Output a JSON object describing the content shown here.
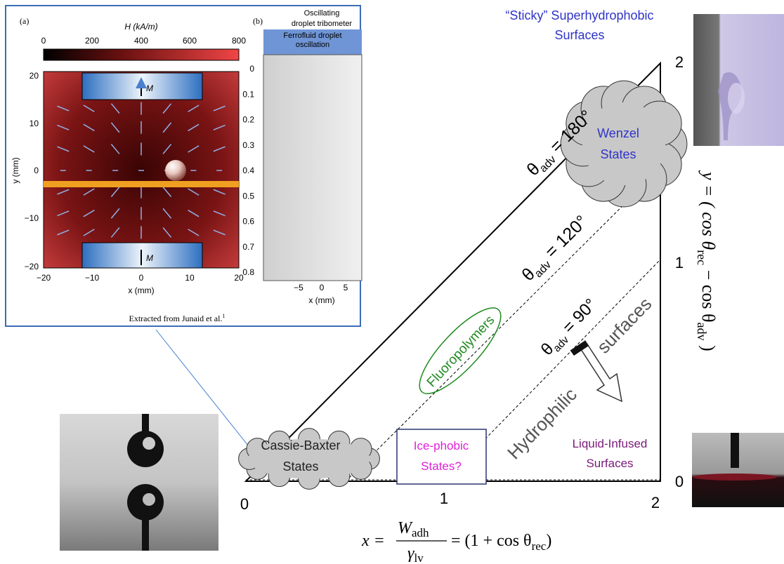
{
  "inset": {
    "panel_a": {
      "label": "(a)",
      "colorbar_title": "H (kA/m)",
      "colorbar_ticks": [
        "0",
        "200",
        "400",
        "600",
        "800"
      ],
      "y_ticks": [
        "20",
        "10",
        "0",
        "−10",
        "−20"
      ],
      "x_ticks": [
        "−20",
        "−10",
        "0",
        "10",
        "20"
      ],
      "y_label": "y (mm)",
      "x_label": "x (mm)",
      "magnet_labels": [
        "M",
        "M"
      ]
    },
    "panel_b": {
      "label": "(b)",
      "title": [
        "Oscillating",
        "droplet tribometer"
      ],
      "header": [
        "Ferrofluid droplet",
        "oscillation"
      ],
      "y_ticks": [
        "0",
        "0.1",
        "0.2",
        "0.3",
        "0.4",
        "0.5",
        "0.6",
        "0.7",
        "0.8"
      ],
      "x_ticks": [
        "−5",
        "0",
        "5"
      ],
      "x_label": "x (mm)"
    },
    "caption": "Extracted from Junaid et al.",
    "caption_ref": "1"
  },
  "diagram": {
    "sticky": [
      "“Sticky” Superhydrophobic",
      "Surfaces"
    ],
    "wenzel": [
      "Wenzel",
      "States"
    ],
    "cassie": [
      "Cassie-Baxter",
      "States"
    ],
    "icephobic": [
      "Ice-phobic",
      "States?"
    ],
    "liquid_infused": [
      "Liquid-Infused",
      "Surfaces"
    ],
    "fluoropolymers": "Fluoropolymers",
    "hydrophilic": "Hydrophilic",
    "surfaces": "surfaces",
    "angle_180": {
      "theta": "θ",
      "sub": "adv",
      "rest": " = 180°"
    },
    "angle_120": {
      "theta": "θ",
      "sub": "adv",
      "rest": " = 120°"
    },
    "angle_90": {
      "theta": "θ",
      "sub": "adv",
      "rest": " = 90°"
    },
    "x_ticks": [
      "0",
      "1",
      "2"
    ],
    "y_ticks": [
      "0",
      "1",
      "2"
    ],
    "x_formula": {
      "lhs": "x =",
      "num": "W",
      "num_sub": "adh",
      "den": "γ",
      "den_sub": "lv",
      "rhs": "= (1 + cos θ",
      "rhs_sub": "rec",
      "close": ")"
    },
    "y_formula": {
      "lhs": "y = ( cos θ",
      "sub1": "rec",
      "mid": " − cos θ",
      "sub2": "adv",
      "close": " )"
    }
  }
}
